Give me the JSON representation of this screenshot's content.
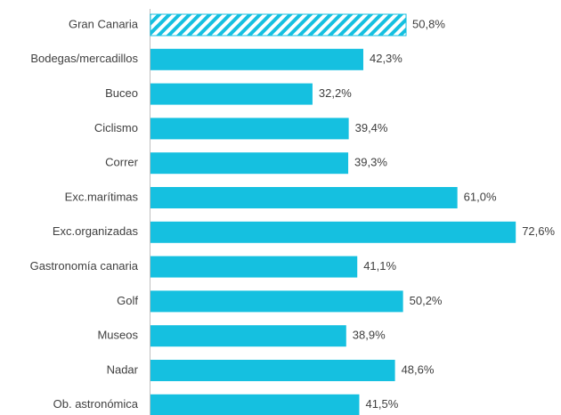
{
  "chart_data": {
    "type": "bar",
    "orientation": "horizontal",
    "categories": [
      "Gran Canaria",
      "Bodegas/mercadillos",
      "Buceo",
      "Ciclismo",
      "Correr",
      "Exc.marítimas",
      "Exc.organizadas",
      "Gastronomía canaria",
      "Golf",
      "Museos",
      "Nadar",
      "Ob. astronómica"
    ],
    "values": [
      50.8,
      42.3,
      32.2,
      39.4,
      39.3,
      61.0,
      72.6,
      41.1,
      50.2,
      38.9,
      48.6,
      41.5
    ],
    "value_labels": [
      "50,8%",
      "42,3%",
      "32,2%",
      "39,4%",
      "39,3%",
      "61,0%",
      "72,6%",
      "41,1%",
      "50,2%",
      "38,9%",
      "48,6%",
      "41,5%"
    ],
    "color": "#15c0e0",
    "fill_styles": [
      "hatched",
      "solid",
      "solid",
      "solid",
      "solid",
      "solid",
      "solid",
      "solid",
      "solid",
      "solid",
      "solid",
      "solid"
    ],
    "grid": false
  }
}
